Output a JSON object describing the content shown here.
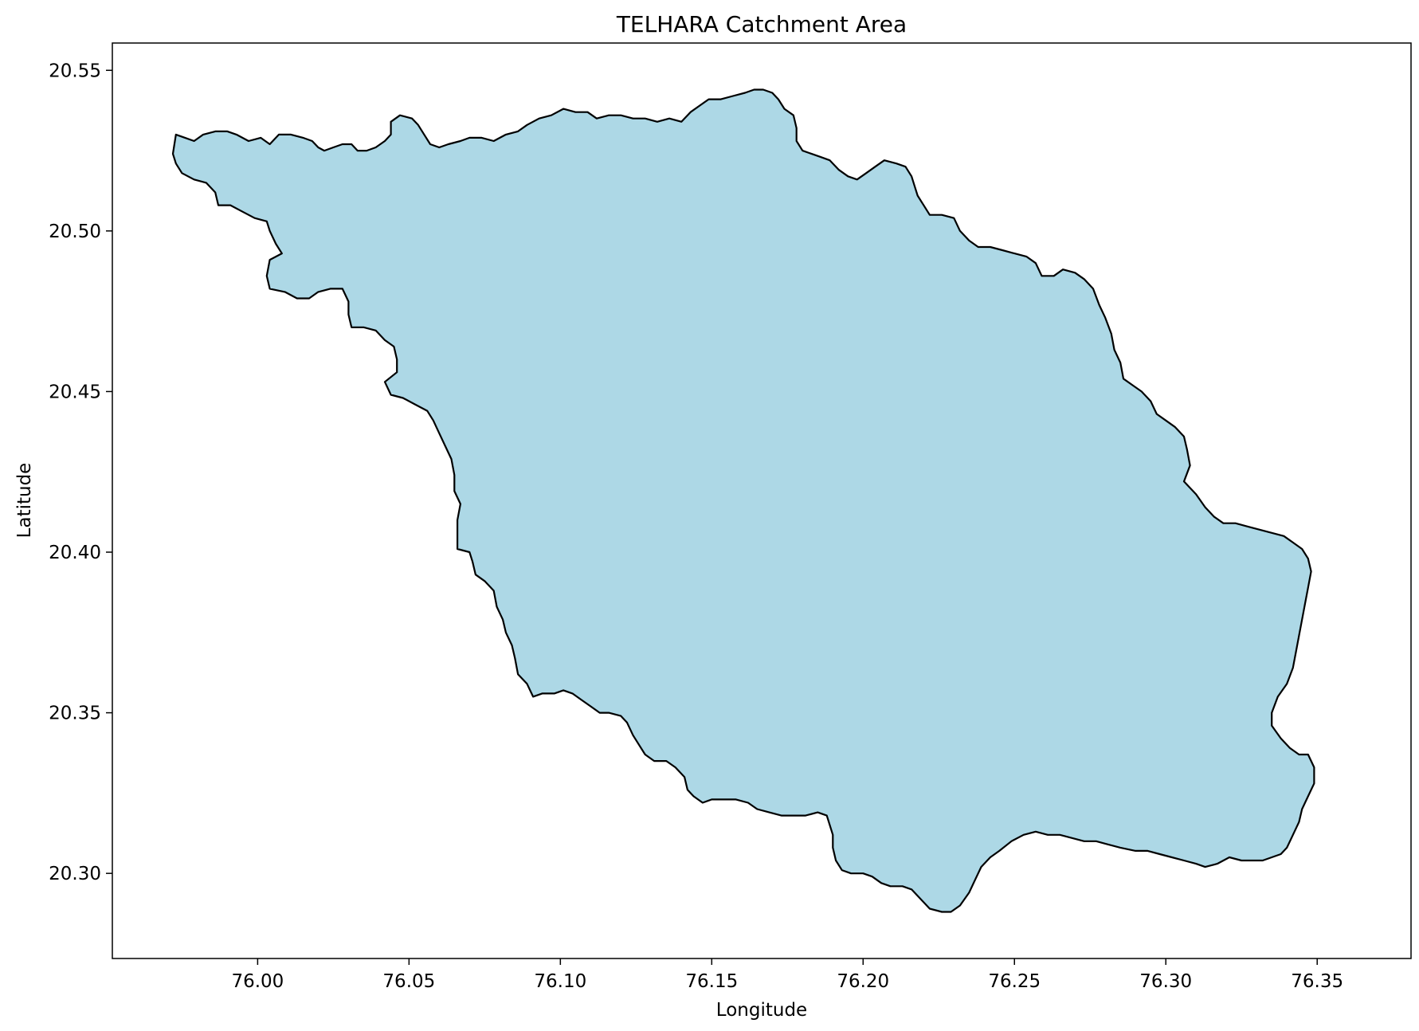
{
  "chart_data": {
    "type": "map",
    "title": "TELHARA Catchment Area",
    "xlabel": "Longitude",
    "ylabel": "Latitude",
    "xlim": [
      75.952,
      76.381
    ],
    "ylim": [
      20.2735,
      20.5585
    ],
    "x_ticks": [
      {
        "value": 76.0,
        "label": "76.00"
      },
      {
        "value": 76.05,
        "label": "76.05"
      },
      {
        "value": 76.1,
        "label": "76.10"
      },
      {
        "value": 76.15,
        "label": "76.15"
      },
      {
        "value": 76.2,
        "label": "76.20"
      },
      {
        "value": 76.25,
        "label": "76.25"
      },
      {
        "value": 76.3,
        "label": "76.30"
      },
      {
        "value": 76.35,
        "label": "76.35"
      }
    ],
    "y_ticks": [
      {
        "value": 20.3,
        "label": "20.30"
      },
      {
        "value": 20.35,
        "label": "20.35"
      },
      {
        "value": 20.4,
        "label": "20.40"
      },
      {
        "value": 20.45,
        "label": "20.45"
      },
      {
        "value": 20.5,
        "label": "20.50"
      },
      {
        "value": 20.55,
        "label": "20.55"
      }
    ],
    "grid": false,
    "fill_color": "#add8e6",
    "edge_color": "#000000",
    "polygon": [
      [
        75.972,
        20.524
      ],
      [
        75.973,
        20.53
      ],
      [
        75.976,
        20.529
      ],
      [
        75.979,
        20.528
      ],
      [
        75.982,
        20.53
      ],
      [
        75.986,
        20.531
      ],
      [
        75.99,
        20.531
      ],
      [
        75.993,
        20.53
      ],
      [
        75.997,
        20.528
      ],
      [
        76.001,
        20.529
      ],
      [
        76.004,
        20.527
      ],
      [
        76.007,
        20.53
      ],
      [
        76.011,
        20.53
      ],
      [
        76.015,
        20.529
      ],
      [
        76.018,
        20.528
      ],
      [
        76.02,
        20.526
      ],
      [
        76.022,
        20.525
      ],
      [
        76.025,
        20.526
      ],
      [
        76.028,
        20.527
      ],
      [
        76.031,
        20.527
      ],
      [
        76.033,
        20.525
      ],
      [
        76.036,
        20.525
      ],
      [
        76.039,
        20.526
      ],
      [
        76.042,
        20.528
      ],
      [
        76.044,
        20.53
      ],
      [
        76.044,
        20.534
      ],
      [
        76.047,
        20.536
      ],
      [
        76.051,
        20.535
      ],
      [
        76.053,
        20.533
      ],
      [
        76.055,
        20.53
      ],
      [
        76.057,
        20.527
      ],
      [
        76.06,
        20.526
      ],
      [
        76.063,
        20.527
      ],
      [
        76.067,
        20.528
      ],
      [
        76.07,
        20.529
      ],
      [
        76.074,
        20.529
      ],
      [
        76.078,
        20.528
      ],
      [
        76.082,
        20.53
      ],
      [
        76.086,
        20.531
      ],
      [
        76.089,
        20.533
      ],
      [
        76.093,
        20.535
      ],
      [
        76.097,
        20.536
      ],
      [
        76.101,
        20.538
      ],
      [
        76.105,
        20.537
      ],
      [
        76.109,
        20.537
      ],
      [
        76.112,
        20.535
      ],
      [
        76.116,
        20.536
      ],
      [
        76.12,
        20.536
      ],
      [
        76.124,
        20.535
      ],
      [
        76.128,
        20.535
      ],
      [
        76.132,
        20.534
      ],
      [
        76.136,
        20.535
      ],
      [
        76.14,
        20.534
      ],
      [
        76.143,
        20.537
      ],
      [
        76.146,
        20.539
      ],
      [
        76.149,
        20.541
      ],
      [
        76.153,
        20.541
      ],
      [
        76.157,
        20.542
      ],
      [
        76.161,
        20.543
      ],
      [
        76.164,
        20.544
      ],
      [
        76.167,
        20.544
      ],
      [
        76.17,
        20.543
      ],
      [
        76.172,
        20.541
      ],
      [
        76.174,
        20.538
      ],
      [
        76.177,
        20.536
      ],
      [
        76.178,
        20.532
      ],
      [
        76.178,
        20.528
      ],
      [
        76.18,
        20.525
      ],
      [
        76.183,
        20.524
      ],
      [
        76.186,
        20.523
      ],
      [
        76.189,
        20.522
      ],
      [
        76.192,
        20.519
      ],
      [
        76.195,
        20.517
      ],
      [
        76.198,
        20.516
      ],
      [
        76.201,
        20.518
      ],
      [
        76.204,
        20.52
      ],
      [
        76.207,
        20.522
      ],
      [
        76.211,
        20.521
      ],
      [
        76.214,
        20.52
      ],
      [
        76.216,
        20.517
      ],
      [
        76.217,
        20.514
      ],
      [
        76.218,
        20.511
      ],
      [
        76.22,
        20.508
      ],
      [
        76.222,
        20.505
      ],
      [
        76.226,
        20.505
      ],
      [
        76.23,
        20.504
      ],
      [
        76.232,
        20.5
      ],
      [
        76.235,
        20.497
      ],
      [
        76.238,
        20.495
      ],
      [
        76.242,
        20.495
      ],
      [
        76.246,
        20.494
      ],
      [
        76.25,
        20.493
      ],
      [
        76.254,
        20.492
      ],
      [
        76.257,
        20.49
      ],
      [
        76.259,
        20.486
      ],
      [
        76.263,
        20.486
      ],
      [
        76.266,
        20.488
      ],
      [
        76.27,
        20.487
      ],
      [
        76.273,
        20.485
      ],
      [
        76.276,
        20.482
      ],
      [
        76.278,
        20.477
      ],
      [
        76.28,
        20.473
      ],
      [
        76.282,
        20.468
      ],
      [
        76.283,
        20.463
      ],
      [
        76.285,
        20.459
      ],
      [
        76.286,
        20.454
      ],
      [
        76.289,
        20.452
      ],
      [
        76.292,
        20.45
      ],
      [
        76.295,
        20.447
      ],
      [
        76.297,
        20.443
      ],
      [
        76.3,
        20.441
      ],
      [
        76.303,
        20.439
      ],
      [
        76.306,
        20.436
      ],
      [
        76.307,
        20.432
      ],
      [
        76.308,
        20.427
      ],
      [
        76.306,
        20.422
      ],
      [
        76.31,
        20.418
      ],
      [
        76.313,
        20.414
      ],
      [
        76.316,
        20.411
      ],
      [
        76.319,
        20.409
      ],
      [
        76.323,
        20.409
      ],
      [
        76.327,
        20.408
      ],
      [
        76.331,
        20.407
      ],
      [
        76.335,
        20.406
      ],
      [
        76.339,
        20.405
      ],
      [
        76.342,
        20.403
      ],
      [
        76.345,
        20.401
      ],
      [
        76.347,
        20.398
      ],
      [
        76.348,
        20.394
      ],
      [
        76.347,
        20.389
      ],
      [
        76.346,
        20.384
      ],
      [
        76.345,
        20.379
      ],
      [
        76.344,
        20.374
      ],
      [
        76.343,
        20.369
      ],
      [
        76.342,
        20.364
      ],
      [
        76.34,
        20.359
      ],
      [
        76.337,
        20.355
      ],
      [
        76.335,
        20.35
      ],
      [
        76.335,
        20.346
      ],
      [
        76.338,
        20.342
      ],
      [
        76.341,
        20.339
      ],
      [
        76.344,
        20.337
      ],
      [
        76.347,
        20.337
      ],
      [
        76.349,
        20.333
      ],
      [
        76.349,
        20.328
      ],
      [
        76.347,
        20.324
      ],
      [
        76.345,
        20.32
      ],
      [
        76.344,
        20.316
      ],
      [
        76.342,
        20.312
      ],
      [
        76.34,
        20.308
      ],
      [
        76.338,
        20.306
      ],
      [
        76.335,
        20.305
      ],
      [
        76.332,
        20.304
      ],
      [
        76.329,
        20.304
      ],
      [
        76.325,
        20.304
      ],
      [
        76.321,
        20.305
      ],
      [
        76.317,
        20.303
      ],
      [
        76.313,
        20.302
      ],
      [
        76.31,
        20.303
      ],
      [
        76.306,
        20.304
      ],
      [
        76.302,
        20.305
      ],
      [
        76.298,
        20.306
      ],
      [
        76.294,
        20.307
      ],
      [
        76.29,
        20.307
      ],
      [
        76.285,
        20.308
      ],
      [
        76.281,
        20.309
      ],
      [
        76.277,
        20.31
      ],
      [
        76.273,
        20.31
      ],
      [
        76.269,
        20.311
      ],
      [
        76.265,
        20.312
      ],
      [
        76.261,
        20.312
      ],
      [
        76.257,
        20.313
      ],
      [
        76.253,
        20.312
      ],
      [
        76.249,
        20.31
      ],
      [
        76.245,
        20.307
      ],
      [
        76.242,
        20.305
      ],
      [
        76.239,
        20.302
      ],
      [
        76.237,
        20.298
      ],
      [
        76.235,
        20.294
      ],
      [
        76.232,
        20.29
      ],
      [
        76.229,
        20.288
      ],
      [
        76.226,
        20.288
      ],
      [
        76.222,
        20.289
      ],
      [
        76.219,
        20.292
      ],
      [
        76.216,
        20.295
      ],
      [
        76.213,
        20.296
      ],
      [
        76.209,
        20.296
      ],
      [
        76.206,
        20.297
      ],
      [
        76.203,
        20.299
      ],
      [
        76.2,
        20.3
      ],
      [
        76.196,
        20.3
      ],
      [
        76.193,
        20.301
      ],
      [
        76.191,
        20.304
      ],
      [
        76.19,
        20.308
      ],
      [
        76.19,
        20.312
      ],
      [
        76.189,
        20.315
      ],
      [
        76.188,
        20.318
      ],
      [
        76.185,
        20.319
      ],
      [
        76.181,
        20.318
      ],
      [
        76.177,
        20.318
      ],
      [
        76.173,
        20.318
      ],
      [
        76.169,
        20.319
      ],
      [
        76.165,
        20.32
      ],
      [
        76.162,
        20.322
      ],
      [
        76.158,
        20.323
      ],
      [
        76.154,
        20.323
      ],
      [
        76.15,
        20.323
      ],
      [
        76.147,
        20.322
      ],
      [
        76.144,
        20.324
      ],
      [
        76.142,
        20.326
      ],
      [
        76.141,
        20.33
      ],
      [
        76.138,
        20.333
      ],
      [
        76.135,
        20.335
      ],
      [
        76.131,
        20.335
      ],
      [
        76.128,
        20.337
      ],
      [
        76.126,
        20.34
      ],
      [
        76.124,
        20.343
      ],
      [
        76.122,
        20.347
      ],
      [
        76.12,
        20.349
      ],
      [
        76.116,
        20.35
      ],
      [
        76.113,
        20.35
      ],
      [
        76.11,
        20.352
      ],
      [
        76.107,
        20.354
      ],
      [
        76.104,
        20.356
      ],
      [
        76.101,
        20.357
      ],
      [
        76.098,
        20.356
      ],
      [
        76.094,
        20.356
      ],
      [
        76.091,
        20.355
      ],
      [
        76.089,
        20.359
      ],
      [
        76.086,
        20.362
      ],
      [
        76.085,
        20.367
      ],
      [
        76.084,
        20.371
      ],
      [
        76.082,
        20.375
      ],
      [
        76.081,
        20.379
      ],
      [
        76.079,
        20.383
      ],
      [
        76.078,
        20.388
      ],
      [
        76.075,
        20.391
      ],
      [
        76.072,
        20.393
      ],
      [
        76.071,
        20.397
      ],
      [
        76.07,
        20.4
      ],
      [
        76.066,
        20.401
      ],
      [
        76.066,
        20.405
      ],
      [
        76.066,
        20.41
      ],
      [
        76.067,
        20.415
      ],
      [
        76.065,
        20.419
      ],
      [
        76.065,
        20.424
      ],
      [
        76.064,
        20.429
      ],
      [
        76.062,
        20.433
      ],
      [
        76.06,
        20.437
      ],
      [
        76.058,
        20.441
      ],
      [
        76.056,
        20.444
      ],
      [
        76.052,
        20.446
      ],
      [
        76.048,
        20.448
      ],
      [
        76.044,
        20.449
      ],
      [
        76.042,
        20.453
      ],
      [
        76.046,
        20.456
      ],
      [
        76.046,
        20.46
      ],
      [
        76.045,
        20.464
      ],
      [
        76.042,
        20.466
      ],
      [
        76.039,
        20.469
      ],
      [
        76.035,
        20.47
      ],
      [
        76.031,
        20.47
      ],
      [
        76.03,
        20.474
      ],
      [
        76.03,
        20.478
      ],
      [
        76.028,
        20.482
      ],
      [
        76.024,
        20.482
      ],
      [
        76.02,
        20.481
      ],
      [
        76.017,
        20.479
      ],
      [
        76.013,
        20.479
      ],
      [
        76.009,
        20.481
      ],
      [
        76.004,
        20.482
      ],
      [
        76.003,
        20.486
      ],
      [
        76.004,
        20.491
      ],
      [
        76.008,
        20.493
      ],
      [
        76.006,
        20.496
      ],
      [
        76.004,
        20.5
      ],
      [
        76.003,
        20.503
      ],
      [
        75.999,
        20.504
      ],
      [
        75.995,
        20.506
      ],
      [
        75.991,
        20.508
      ],
      [
        75.987,
        20.508
      ],
      [
        75.986,
        20.512
      ],
      [
        75.983,
        20.515
      ],
      [
        75.979,
        20.516
      ],
      [
        75.975,
        20.518
      ],
      [
        75.973,
        20.521
      ]
    ]
  }
}
